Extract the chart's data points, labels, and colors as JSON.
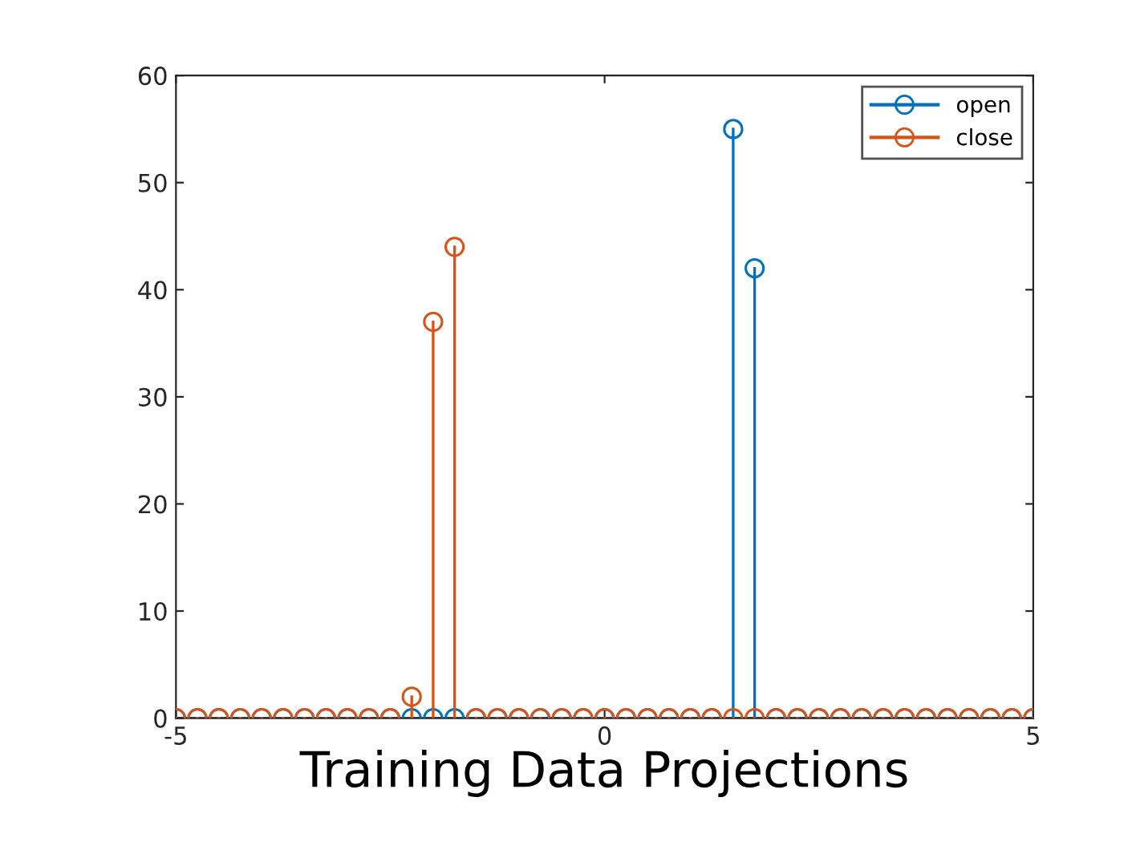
{
  "chart_data": {
    "type": "lollipop",
    "xlabel": "Training Data Projections",
    "x": [
      -5,
      -4.75,
      -4.5,
      -4.25,
      -4,
      -3.75,
      -3.5,
      -3.25,
      -3,
      -2.75,
      -2.5,
      -2.25,
      -2,
      -1.75,
      -1.5,
      -1.25,
      -1,
      -0.75,
      -0.5,
      -0.25,
      0,
      0.25,
      0.5,
      0.75,
      1,
      1.25,
      1.5,
      1.75,
      2,
      2.25,
      2.5,
      2.75,
      3,
      3.25,
      3.5,
      3.75,
      4,
      4.25,
      4.5,
      4.75,
      5
    ],
    "series": [
      {
        "name": "open",
        "color": "#0072bd",
        "values": [
          0,
          0,
          0,
          0,
          0,
          0,
          0,
          0,
          0,
          0,
          0,
          0,
          0,
          0,
          0,
          0,
          0,
          0,
          0,
          0,
          0,
          0,
          0,
          0,
          0,
          0,
          55,
          42,
          0,
          0,
          0,
          0,
          0,
          0,
          0,
          0,
          0,
          0,
          0,
          0,
          0
        ]
      },
      {
        "name": "close",
        "color": "#d95319",
        "values": [
          0,
          0,
          0,
          0,
          0,
          0,
          0,
          0,
          0,
          0,
          0,
          2,
          37,
          44,
          0,
          0,
          0,
          0,
          0,
          0,
          0,
          0,
          0,
          0,
          0,
          0,
          0,
          0,
          0,
          0,
          0,
          0,
          0,
          0,
          0,
          0,
          0,
          0,
          0,
          0,
          0
        ]
      }
    ],
    "xlim": [
      -5,
      5
    ],
    "xticks": [
      -5,
      0,
      5
    ],
    "ylim": [
      0,
      60
    ],
    "yticks": [
      0,
      10,
      20,
      30,
      40,
      50,
      60
    ],
    "ref_lines": [
      {
        "axis": "y",
        "value": 0,
        "color": "#262626"
      }
    ],
    "marker": "circle",
    "legend": "top right",
    "grid": false
  }
}
